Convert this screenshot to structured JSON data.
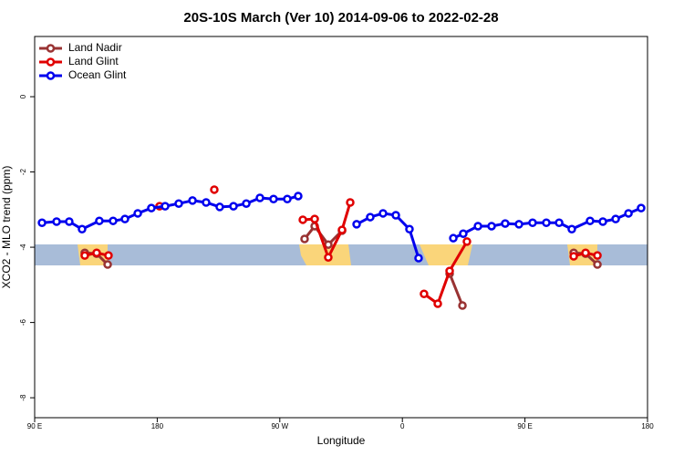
{
  "chart_data": {
    "type": "line",
    "title": "20S-10S March (Ver 10)   2014-09-06 to 2022-02-28",
    "x_label": "Longitude",
    "y_label": "XCO2 - MLO trend (ppm)",
    "xlim": [
      90,
      540
    ],
    "ylim": [
      -8.53,
      1.6
    ],
    "xticks": [
      {
        "value": 90,
        "label": "90 E"
      },
      {
        "value": 180,
        "label": "180"
      },
      {
        "value": 270,
        "label": "90 W"
      },
      {
        "value": 360,
        "label": "0"
      },
      {
        "value": 450,
        "label": "90 E"
      },
      {
        "value": 540,
        "label": "180"
      }
    ],
    "yticks": [
      0,
      -2,
      -4,
      -6,
      -8
    ],
    "legend": "top-left",
    "series": [
      {
        "name": "Land Nadir",
        "color": "#993333",
        "x": [
          126.8,
          135.5,
          143.6,
          null,
          288.2,
          295.6,
          305.6,
          315.7,
          null,
          394.7,
          404.1,
          null,
          485.8,
          494.5,
          503.2
        ],
        "values": [
          -4.15,
          -4.17,
          -4.46,
          null,
          -3.78,
          -3.44,
          -3.93,
          -3.56,
          null,
          -4.7,
          -5.55,
          null,
          -4.15,
          -4.17,
          -4.46
        ]
      },
      {
        "name": "Land Glint",
        "color": "#e00000",
        "x": [
          126.8,
          135.5,
          144.2,
          null,
          181.7,
          null,
          221.9,
          null,
          286.9,
          295.6,
          305.6,
          315.7,
          321.7,
          null,
          375.9,
          386.0,
          394.7,
          407.4,
          null,
          485.8,
          494.5,
          503.2
        ],
        "values": [
          -4.22,
          -4.15,
          -4.22,
          null,
          -2.91,
          null,
          -2.47,
          null,
          -3.27,
          -3.25,
          -4.27,
          -3.54,
          -2.81,
          null,
          -5.24,
          -5.5,
          -4.63,
          -3.85,
          null,
          -4.24,
          -4.15,
          -4.22
        ]
      },
      {
        "name": "Ocean Glint",
        "color": "#0000ee",
        "x": [
          95.4,
          106.1,
          115.4,
          124.8,
          137.5,
          147.6,
          156.3,
          165.7,
          175.7,
          185.8,
          195.8,
          205.9,
          215.9,
          225.9,
          236.0,
          245.4,
          255.4,
          265.4,
          275.5,
          283.5,
          null,
          326.4,
          336.4,
          345.8,
          355.2,
          365.2,
          371.9,
          null,
          397.4,
          404.7,
          415.5,
          425.5,
          435.5,
          445.6,
          455.6,
          465.7,
          475.1,
          484.4,
          497.8,
          507.2,
          516.6,
          526.0,
          535.3
        ],
        "values": [
          -3.35,
          -3.32,
          -3.32,
          -3.52,
          -3.3,
          -3.3,
          -3.25,
          -3.1,
          -2.96,
          -2.91,
          -2.84,
          -2.76,
          -2.81,
          -2.93,
          -2.91,
          -2.84,
          -2.69,
          -2.72,
          -2.72,
          -2.64,
          null,
          -3.39,
          -3.2,
          -3.1,
          -3.15,
          -3.52,
          -4.29,
          null,
          -3.76,
          -3.64,
          -3.44,
          -3.44,
          -3.37,
          -3.39,
          -3.35,
          -3.35,
          -3.35,
          -3.52,
          -3.3,
          -3.32,
          -3.25,
          -3.1,
          -2.96
        ]
      }
    ]
  }
}
